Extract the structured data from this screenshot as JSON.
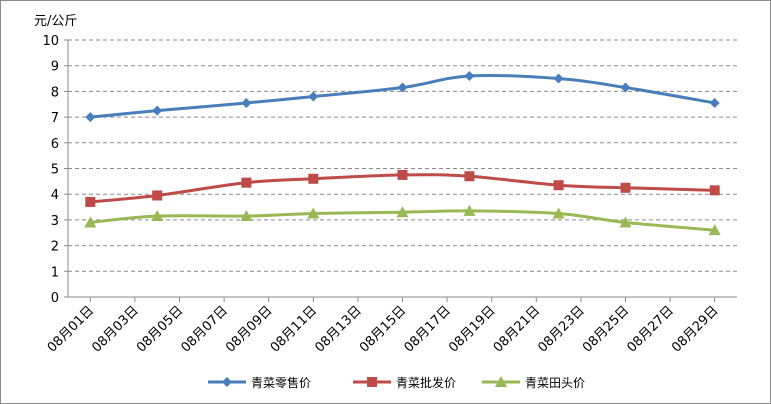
{
  "chart_data": {
    "type": "line",
    "title": "",
    "xlabel": "",
    "ylabel": "元/公斤",
    "ylim": [
      0,
      10
    ],
    "y_ticks": [
      0,
      1,
      2,
      3,
      4,
      5,
      6,
      7,
      8,
      9,
      10
    ],
    "x_tick_labels": [
      "08月01日",
      "08月03日",
      "08月05日",
      "08月07日",
      "08月09日",
      "08月11日",
      "08月13日",
      "08月15日",
      "08月17日",
      "08月19日",
      "08月21日",
      "08月23日",
      "08月25日",
      "08月27日",
      "08月29日"
    ],
    "grid": "horizontal-dashed",
    "legend_position": "bottom",
    "x": [
      "08月01日",
      "08月04日",
      "08月08日",
      "08月11日",
      "08月15日",
      "08月18日",
      "08月22日",
      "08月25日",
      "08月29日"
    ],
    "series": [
      {
        "name": "青菜零售价",
        "color": "#4a7ebb",
        "marker": "diamond",
        "values": [
          7.0,
          7.25,
          7.55,
          7.8,
          8.15,
          8.6,
          8.5,
          8.15,
          7.55
        ]
      },
      {
        "name": "青菜批发价",
        "color": "#be4b48",
        "marker": "square",
        "values": [
          3.7,
          3.95,
          4.45,
          4.6,
          4.75,
          4.7,
          4.35,
          4.25,
          4.15
        ]
      },
      {
        "name": "青菜田头价",
        "color": "#98b954",
        "marker": "triangle",
        "values": [
          2.9,
          3.15,
          3.15,
          3.25,
          3.3,
          3.35,
          3.25,
          2.9,
          2.6
        ]
      }
    ]
  }
}
